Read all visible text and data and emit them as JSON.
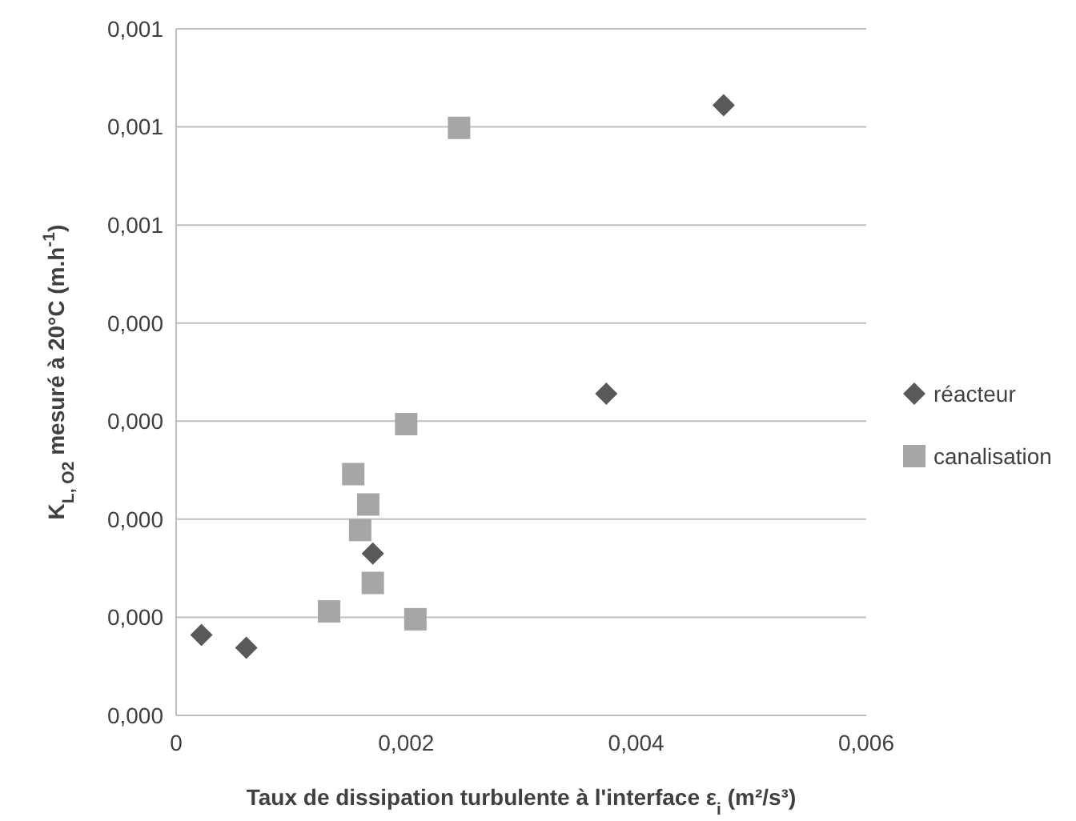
{
  "chart_data": {
    "type": "scatter",
    "xlabel": "Taux de dissipation turbulente à l'interface ε$_{i}$ (m²/s³)",
    "ylabel": "K$_{L, O2}$ mesuré à 20°C (m.h$^{-1}$)",
    "xlim": [
      0,
      0.006
    ],
    "xticks": [
      0,
      {
        "value": 0.002,
        "label": "0,002"
      },
      {
        "value": 0.004,
        "label": "0,004"
      },
      {
        "value": 0.006,
        "label": "0,006"
      }
    ],
    "ylim": [
      0,
      0.0007
    ],
    "yticks": [
      {
        "value": 0,
        "label": "0,000"
      },
      {
        "value": 0.0001,
        "label": "0,000"
      },
      {
        "value": 0.0002,
        "label": "0,000"
      },
      {
        "value": 0.0003,
        "label": "0,000"
      },
      {
        "value": 0.0004,
        "label": "0,000"
      },
      {
        "value": 0.0005,
        "label": "0,001"
      },
      {
        "value": 0.0006,
        "label": "0,001"
      },
      {
        "value": 0.0007,
        "label": "0,001"
      }
    ],
    "grid": "y",
    "legend": "right",
    "series": [
      {
        "name": "réacteur",
        "color": "#595959",
        "marker": "diamond",
        "x": [
          0.00022,
          0.00061,
          0.00171,
          0.00374,
          0.00476
        ],
        "values": [
          8.2e-05,
          6.9e-05,
          0.000165,
          0.000328,
          0.000622
        ]
      },
      {
        "name": "canalisation",
        "color": "#a6a6a6",
        "marker": "square",
        "x": [
          0.00246,
          0.002,
          0.00154,
          0.00167,
          0.0016,
          0.00171,
          0.00133,
          0.00208
        ],
        "values": [
          0.000599,
          0.000297,
          0.000246,
          0.000215,
          0.000189,
          0.000135,
          0.000106,
          9.8e-05
        ]
      }
    ]
  }
}
